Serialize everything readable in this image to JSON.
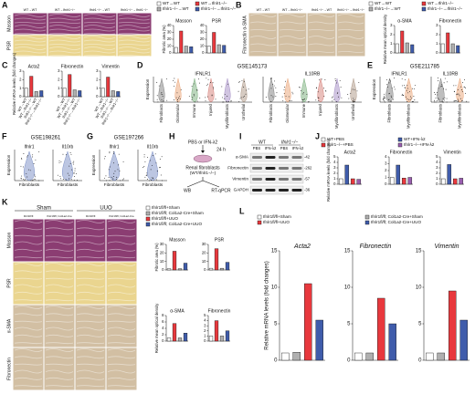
{
  "panel_letters": [
    "A",
    "B",
    "C",
    "D",
    "E",
    "F",
    "G",
    "H",
    "I",
    "J",
    "K",
    "L"
  ],
  "panel_A": {
    "columns": [
      "WT→WT",
      "WT→Ifnlr1−/−",
      "Ifnlr1−/−→WT",
      "Ifnlr1−/−→Ifnlr1−/−"
    ],
    "rows": [
      "Masson",
      "PSR"
    ]
  },
  "panel_B": {
    "columns": [
      "WT→WT",
      "WT→Ifnlr1−/−",
      "Ifnlr1−/−→WT",
      "Ifnlr1−/−→Ifnlr1−/−"
    ],
    "rows": [
      "Fibronectin α-SMA"
    ]
  },
  "legends": [
    {
      "items": [
        "WT→WT",
        "WT→Ifnlr1−/−",
        "Ifnlr1−/−→WT",
        "Ifnlr1−/−→Ifnlr1−/−"
      ],
      "colors": [
        "#ffffff",
        "#e8383d",
        "#b0b0b0",
        "#3f5cab"
      ]
    },
    {
      "items": [
        "WT→WT",
        "WT→Ifnlr1−/−",
        "Ifnlr1−/−→WT",
        "Ifnlr1−/−→Ifnlr1−/−"
      ],
      "colors": [
        "#ffffff",
        "#e8383d",
        "#b0b0b0",
        "#3f5cab"
      ]
    },
    {
      "items": [
        "WT+PBS",
        "WT+IFN-λ2",
        "Ifnlr1−/−+PBS",
        "Ifnlr1−/−+IFN-λ2"
      ],
      "colors": [
        "#ffffff",
        "#3f5cab",
        "#e8383d",
        "#9a5fb0"
      ]
    },
    {
      "items": [
        "Ifnlr1fl/fl+Sham",
        "Ifnlr1fl/fl; Col1a2-Cre+Sham",
        "Ifnlr1fl/fl+UUO",
        "Ifnlr1fl/fl; Col1a2-Cre+UUO"
      ],
      "colors": [
        "#ffffff",
        "#b0b0b0",
        "#e8383d",
        "#3f5cab"
      ]
    },
    {
      "items": [
        "Ifnlr1fl/fl+Sham",
        "Ifnlr1fl/fl; Col1a2-Cre+Sham",
        "Ifnlr1fl/fl+UUO",
        "Ifnlr1fl/fl; Col1a2-Cre+UUO"
      ],
      "colors": [
        "#ffffff",
        "#b0b0b0",
        "#e8383d",
        "#3f5cab"
      ]
    }
  ],
  "bar_charts": [
    {
      "title": "Masson",
      "ylabel": "Fibrotic area (%)",
      "ylim": [
        0,
        40
      ],
      "yticks": [
        0,
        10,
        20,
        30,
        40
      ],
      "values": [
        8,
        32,
        10,
        9
      ],
      "colors": [
        "#ffffff",
        "#e8383d",
        "#b0b0b0",
        "#3f5cab"
      ]
    },
    {
      "title": "PSR",
      "ylim": [
        0,
        40
      ],
      "yticks": [
        0,
        10,
        20,
        30,
        40
      ],
      "values": [
        10,
        30,
        12,
        11
      ],
      "colors": [
        "#ffffff",
        "#e8383d",
        "#b0b0b0",
        "#3f5cab"
      ]
    },
    {
      "title": "α-SMA",
      "ylabel": "Relative mean optical density",
      "ylim": [
        0,
        3
      ],
      "yticks": [
        0,
        1,
        2,
        3
      ],
      "values": [
        1,
        2.4,
        1.1,
        0.9
      ],
      "colors": [
        "#ffffff",
        "#e8383d",
        "#b0b0b0",
        "#3f5cab"
      ]
    },
    {
      "title": "Fibronectin",
      "ylim": [
        0,
        3
      ],
      "yticks": [
        0,
        1,
        2,
        3
      ],
      "values": [
        1,
        2.2,
        1,
        0.8
      ],
      "colors": [
        "#ffffff",
        "#e8383d",
        "#b0b0b0",
        "#3f5cab"
      ]
    },
    {
      "title": "Acta2",
      "ylabel": "Relative mRNA levels (fold changes)",
      "ylim": [
        0,
        3
      ],
      "yticks": [
        0,
        1,
        2,
        3
      ],
      "values": [
        1,
        2.4,
        0.6,
        0.7
      ],
      "colors": [
        "#ffffff",
        "#e8383d",
        "#b0b0b0",
        "#3f5cab"
      ],
      "categories": [
        "WT→WT",
        "WT→Ifnlr1−/−",
        "Ifnlr1−/−→WT",
        "Ifnlr1−/−→Ifnlr1−/−"
      ]
    },
    {
      "title": "Fibronectin",
      "ylim": [
        0,
        3
      ],
      "yticks": [
        0,
        1,
        2,
        3
      ],
      "values": [
        1,
        2.6,
        0.8,
        0.7
      ],
      "colors": [
        "#ffffff",
        "#e8383d",
        "#b0b0b0",
        "#3f5cab"
      ],
      "categories": [
        "WT→WT",
        "WT→Ifnlr1−/−",
        "Ifnlr1−/−→WT",
        "Ifnlr1−/−→Ifnlr1−/−"
      ]
    },
    {
      "title": "Vimentin",
      "ylim": [
        0,
        3
      ],
      "yticks": [
        0,
        1,
        2,
        3
      ],
      "values": [
        1,
        2.3,
        0.7,
        0.6
      ],
      "colors": [
        "#ffffff",
        "#e8383d",
        "#b0b0b0",
        "#3f5cab"
      ],
      "categories": [
        "WT→WT",
        "WT→Ifnlr1−/−",
        "Ifnlr1−/−→WT",
        "Ifnlr1−/−→Ifnlr1−/−"
      ]
    },
    {
      "title": "Acta2",
      "ylabel": "Relative mRNA levels (fold changes)",
      "ylim": [
        0,
        5
      ],
      "yticks": [
        0,
        1,
        2,
        3,
        4,
        5
      ],
      "values": [
        1,
        3.5,
        1,
        0.9
      ],
      "colors": [
        "#ffffff",
        "#3f5cab",
        "#e8383d",
        "#9a5fb0"
      ]
    },
    {
      "title": "Fibronectin",
      "ylim": [
        0,
        4
      ],
      "yticks": [
        0,
        1,
        2,
        3,
        4
      ],
      "values": [
        1,
        2.8,
        0.9,
        1
      ],
      "colors": [
        "#ffffff",
        "#3f5cab",
        "#e8383d",
        "#9a5fb0"
      ]
    },
    {
      "title": "Vimentin",
      "ylim": [
        0,
        5
      ],
      "yticks": [
        0,
        1,
        2,
        3,
        4,
        5
      ],
      "values": [
        1,
        3.6,
        1,
        1.1
      ],
      "colors": [
        "#ffffff",
        "#3f5cab",
        "#e8383d",
        "#9a5fb0"
      ]
    },
    {
      "title": "Masson",
      "ylabel": "Fibrotic area (%)",
      "ylim": [
        0,
        30
      ],
      "yticks": [
        0,
        10,
        20,
        30
      ],
      "values": [
        1.5,
        22,
        1.5,
        8
      ],
      "colors": [
        "#ffffff",
        "#e8383d",
        "#b0b0b0",
        "#3f5cab"
      ]
    },
    {
      "title": "PSR",
      "ylim": [
        0,
        30
      ],
      "yticks": [
        0,
        10,
        20,
        30
      ],
      "values": [
        2,
        25,
        2,
        9
      ],
      "colors": [
        "#ffffff",
        "#e8383d",
        "#b0b0b0",
        "#3f5cab"
      ]
    },
    {
      "title": "α-SMA",
      "ylabel": "Relative mean optical density",
      "ylim": [
        0,
        8
      ],
      "yticks": [
        0,
        2,
        4,
        6,
        8
      ],
      "values": [
        1,
        5.5,
        1,
        2.5
      ],
      "colors": [
        "#ffffff",
        "#e8383d",
        "#b0b0b0",
        "#3f5cab"
      ]
    },
    {
      "title": "Fibronectin",
      "ylim": [
        0,
        5
      ],
      "yticks": [
        0,
        1,
        2,
        3,
        4,
        5
      ],
      "values": [
        1,
        4,
        1,
        2
      ],
      "colors": [
        "#ffffff",
        "#e8383d",
        "#b0b0b0",
        "#3f5cab"
      ]
    },
    {
      "title": "Acta2",
      "ylabel": "Relative mRNA levels (fold changes)",
      "ylim": [
        0,
        15
      ],
      "yticks": [
        0,
        5,
        10,
        15
      ],
      "values": [
        1,
        1.1,
        10.5,
        5.5
      ],
      "colors": [
        "#ffffff",
        "#b0b0b0",
        "#e8383d",
        "#3f5cab"
      ]
    },
    {
      "title": "Fibronectin",
      "ylim": [
        0,
        15
      ],
      "yticks": [
        0,
        5,
        10,
        15
      ],
      "values": [
        1,
        1,
        8.5,
        5
      ],
      "colors": [
        "#ffffff",
        "#b0b0b0",
        "#e8383d",
        "#3f5cab"
      ]
    },
    {
      "title": "Vimentin",
      "ylim": [
        0,
        15
      ],
      "yticks": [
        0,
        5,
        10,
        15
      ],
      "values": [
        1,
        1,
        9.5,
        5.5
      ],
      "colors": [
        "#ffffff",
        "#b0b0b0",
        "#e8383d",
        "#3f5cab"
      ]
    }
  ],
  "violin_panels": [
    {
      "title": "GSE145173",
      "ylabel": "Expression",
      "plots": [
        {
          "gene": "IFNLR1",
          "categories": [
            "Fibroblasts",
            "Glomerular",
            "Immune",
            "Injured",
            "Myofibroblasts",
            "Urothelial"
          ]
        },
        {
          "gene": "IL10RB",
          "categories": [
            "Fibroblasts",
            "Glomerular",
            "Immune",
            "Injured",
            "Myofibroblasts",
            "Urothelial"
          ]
        }
      ]
    },
    {
      "title": "GSE211785",
      "ylabel": "Expression",
      "plots": [
        {
          "gene": "IFNLR1",
          "categories": [
            "Fibroblasts",
            "Myofibroblasts"
          ]
        },
        {
          "gene": "IL10RB",
          "categories": [
            "Fibroblasts",
            "Myofibroblasts"
          ]
        }
      ]
    },
    {
      "title": "GSE198261",
      "ylabel": "Expression",
      "plots": [
        {
          "gene": "Ifnlr1",
          "categories": [
            "Fibroblasts"
          ]
        },
        {
          "gene": "Il10rb",
          "categories": [
            "Fibroblasts"
          ]
        }
      ]
    },
    {
      "title": "GSE197266",
      "ylabel": "Expression",
      "plots": [
        {
          "gene": "Ifnlr1",
          "categories": [
            "Fibroblasts"
          ]
        },
        {
          "gene": "Il10rb",
          "categories": [
            "Fibroblasts"
          ]
        }
      ]
    }
  ],
  "schematic_H": {
    "treatment": "PBS or IFN-λ2",
    "time": "24 h",
    "cells": "Renal fibroblasts",
    "genotype": "(WT/Ifnlr1−/−)",
    "readouts": [
      "WB",
      "RT-qPCR"
    ]
  },
  "western_I": {
    "genotypes": [
      "WT",
      "Ifnlr1−/−"
    ],
    "treatments": [
      "PBS",
      "IFN-λ2",
      "PBS",
      "IFN-λ2"
    ],
    "proteins": [
      "α-SMA",
      "Fibronectin",
      "Vimentin",
      "GAPDH"
    ],
    "sizes": [
      "-42",
      "-262",
      "-57",
      "-36"
    ]
  },
  "panel_K": {
    "columns": [
      "Sham",
      "UUO"
    ],
    "subcolumns": [
      "Ifnlr1fl/fl",
      "Ifnlr1fl/fl; Col1a2-Cre",
      "Ifnlr1fl/fl",
      "Ifnlr1fl/fl; Col1a2-Cre"
    ],
    "rows": [
      "Masson",
      "PSR",
      "α-SMA",
      "Fibronectin"
    ]
  }
}
